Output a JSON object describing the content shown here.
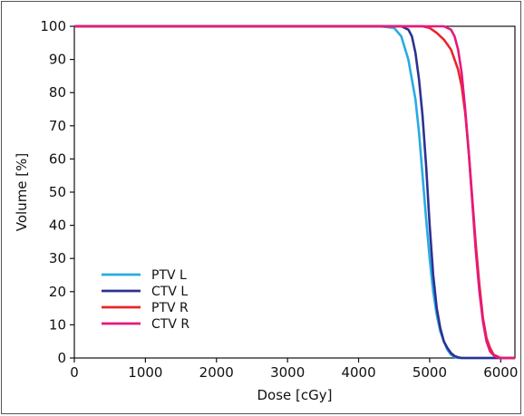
{
  "chart_data": {
    "type": "line",
    "title": "",
    "xlabel": "Dose [cGy]",
    "ylabel": "Volume [%]",
    "xlim": [
      0,
      6200
    ],
    "ylim": [
      0,
      100
    ],
    "xticks": [
      0,
      1000,
      2000,
      3000,
      4000,
      5000,
      6000
    ],
    "yticks": [
      0,
      10,
      20,
      30,
      40,
      50,
      60,
      70,
      80,
      90,
      100
    ],
    "grid": false,
    "legend_position": "lower-left",
    "series": [
      {
        "name": "PTV L",
        "color": "#29abe2",
        "x": [
          0,
          4300,
          4500,
          4600,
          4700,
          4800,
          4850,
          4900,
          4950,
          5000,
          5050,
          5100,
          5150,
          5200,
          5250,
          5300,
          5350,
          5400,
          5500,
          5600,
          6200
        ],
        "y": [
          100,
          100,
          99.5,
          97,
          90,
          78,
          68,
          55,
          42,
          30,
          20,
          13,
          8,
          5,
          2.5,
          1,
          0.3,
          0,
          0,
          0,
          0
        ]
      },
      {
        "name": "CTV L",
        "color": "#2e3192",
        "x": [
          0,
          4600,
          4700,
          4750,
          4800,
          4850,
          4900,
          4950,
          5000,
          5050,
          5100,
          5150,
          5200,
          5250,
          5300,
          5350,
          5400,
          5450,
          5500,
          6200
        ],
        "y": [
          100,
          100,
          99,
          97,
          92,
          84,
          73,
          58,
          40,
          25,
          15,
          9,
          5,
          3,
          1.5,
          0.6,
          0.2,
          0,
          0,
          0
        ]
      },
      {
        "name": "PTV R",
        "color": "#e8262a",
        "x": [
          0,
          4900,
          5000,
          5100,
          5200,
          5300,
          5400,
          5450,
          5500,
          5550,
          5600,
          5650,
          5700,
          5750,
          5800,
          5850,
          5900,
          6000,
          6200
        ],
        "y": [
          100,
          100,
          99.5,
          98,
          96,
          93,
          87,
          82,
          74,
          62,
          48,
          34,
          22,
          12,
          6,
          3,
          1,
          0,
          0
        ]
      },
      {
        "name": "CTV R",
        "color": "#e5197e",
        "x": [
          0,
          5100,
          5200,
          5300,
          5350,
          5400,
          5450,
          5500,
          5550,
          5600,
          5650,
          5700,
          5750,
          5800,
          5850,
          5900,
          5950,
          6000,
          6200
        ],
        "y": [
          100,
          100,
          100,
          99,
          97,
          93,
          86,
          75,
          62,
          47,
          32,
          20,
          11,
          5,
          2,
          0.8,
          0.2,
          0,
          0
        ]
      }
    ]
  }
}
